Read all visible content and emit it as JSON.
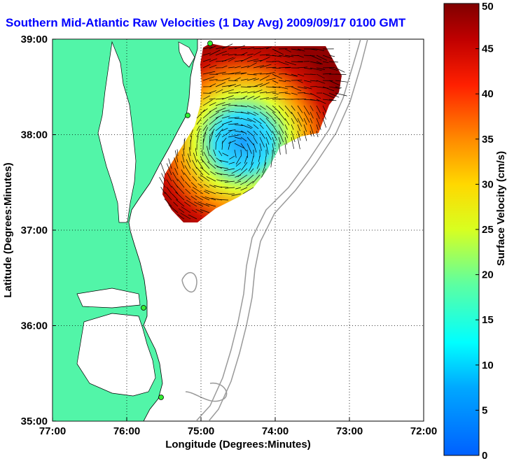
{
  "title": "Southern Mid-Atlantic Raw Velocities (1 Day Avg) 2009/09/17 0100 GMT",
  "x_axis": {
    "label": "Longitude (Degrees:Minutes)",
    "ticks": [
      "77:00",
      "76:00",
      "75:00",
      "74:00",
      "73:00",
      "72:00"
    ]
  },
  "y_axis": {
    "label": "Latitude (Degrees:Minutes)",
    "ticks": [
      "39:00",
      "38:00",
      "37:00",
      "36:00",
      "35:00"
    ]
  },
  "colorbar": {
    "label": "Surface Velocity (cm/s)",
    "ticks": [
      "50",
      "45",
      "40",
      "35",
      "30",
      "25",
      "20",
      "15",
      "10",
      "5",
      "0"
    ],
    "range": [
      0,
      50
    ]
  },
  "colors": {
    "land": "#52f5a8",
    "water": "#ffffff",
    "title": "#0000ff",
    "station": "#33ee33"
  },
  "map_extent": {
    "lon": [
      -77,
      -72
    ],
    "lat": [
      35,
      39
    ]
  }
}
